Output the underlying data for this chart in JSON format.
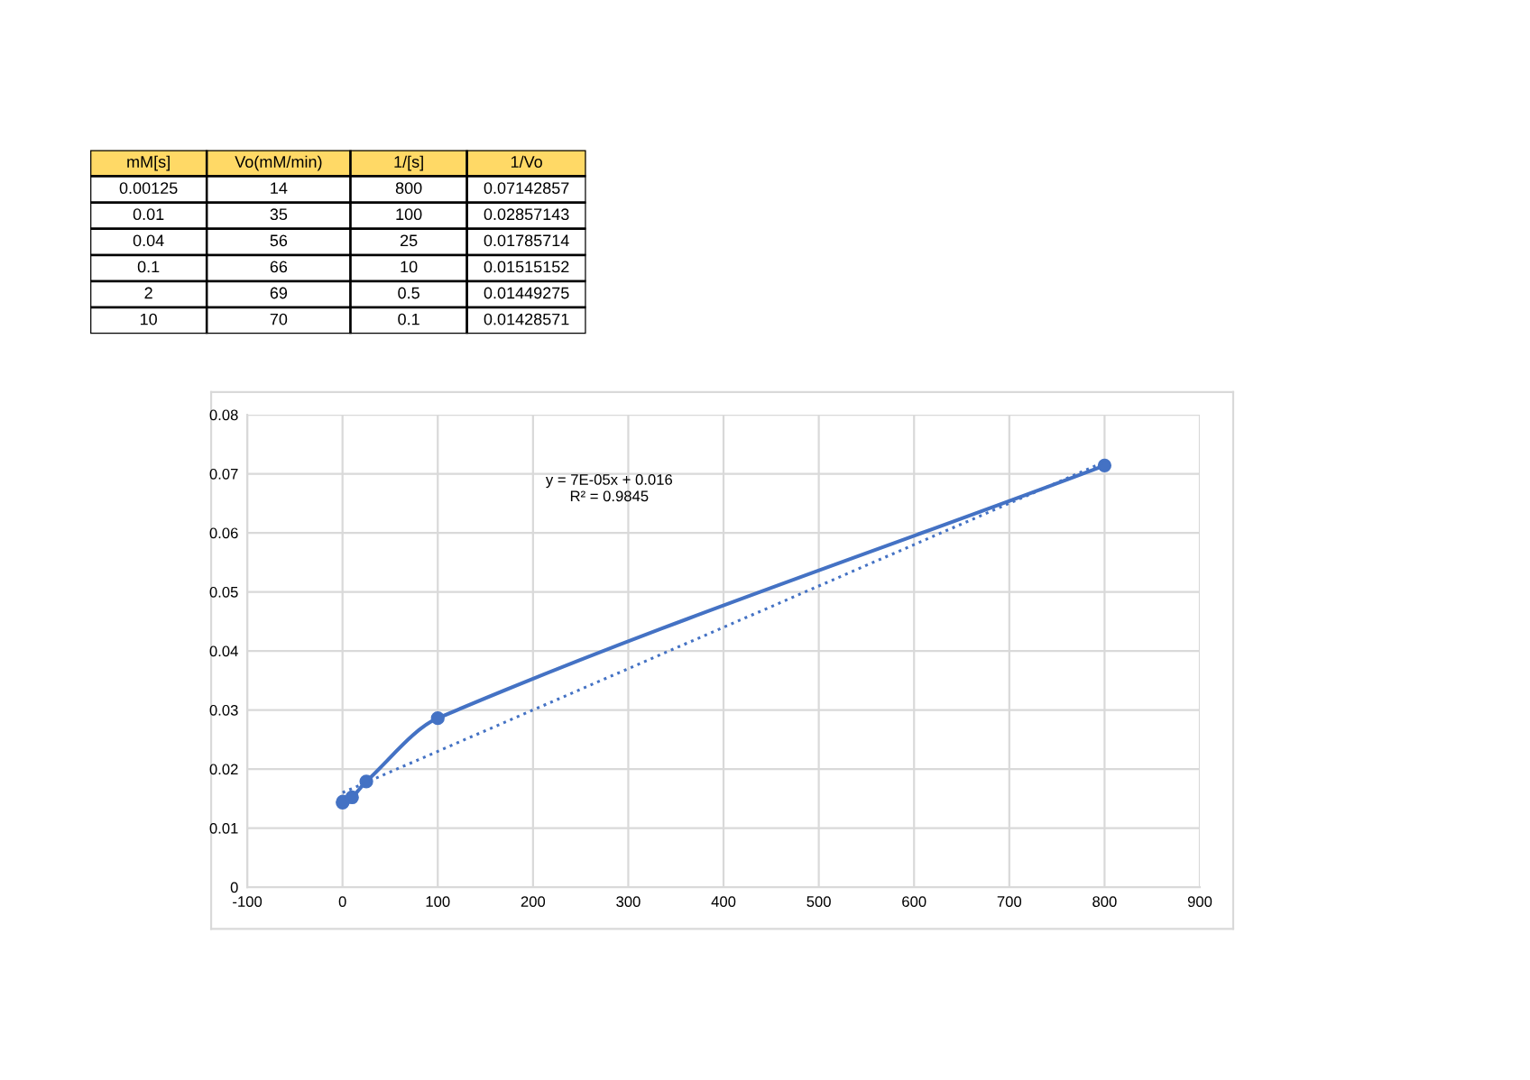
{
  "chart_data": [
    {
      "type": "other",
      "color": "#ffd966",
      "categories": [
        "mM[s]",
        "Vo(mM/min)",
        "1/[s]",
        "1/Vo"
      ],
      "annotations": [
        "0.00125",
        "14",
        "800",
        "0.07142857",
        "0.01",
        "35",
        "100",
        "0.02857143",
        "0.04",
        "56",
        "25",
        "0.01785714",
        "0.1",
        "66",
        "10",
        "0.01515152",
        "2",
        "69",
        "0.5",
        "0.01449275",
        "10",
        "70",
        "0.1",
        "0.01428571"
      ]
    },
    {
      "type": "line",
      "grid": true,
      "series": [
        {
          "type": "line",
          "color": "#4472c4",
          "marker": "circle",
          "line_style": "solid",
          "x": [
            0.1,
            0.5,
            10,
            25,
            100,
            800
          ],
          "values": [
            0.0143,
            0.0145,
            0.0152,
            0.0179,
            0.0286,
            0.0714
          ]
        },
        {
          "type": "line",
          "color": "#4472c4",
          "marker": "none",
          "line_style": "dotted",
          "x": [
            0.1,
            800
          ],
          "values": [
            0.016,
            0.072
          ]
        }
      ],
      "annotations": [
        "y = 7E-05x + 0.016",
        "R² = 0.9845"
      ],
      "xlim": [
        -100,
        900
      ],
      "xticks": [
        -100,
        0,
        100,
        200,
        300,
        400,
        500,
        600,
        700,
        800,
        900
      ],
      "ylim": [
        0,
        0.08
      ],
      "yticks": [
        0,
        0.01,
        0.02,
        0.03,
        0.04,
        0.05,
        0.06,
        0.07,
        0.08
      ]
    }
  ]
}
